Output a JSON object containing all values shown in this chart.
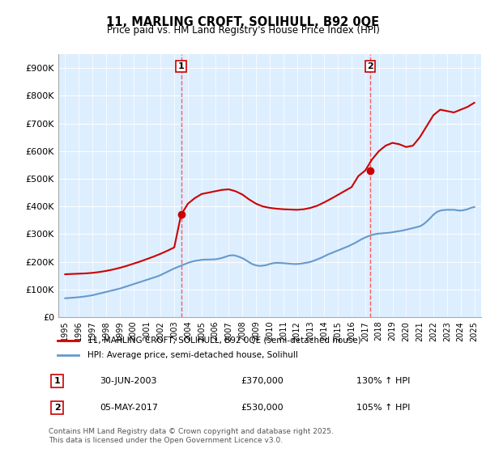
{
  "title": "11, MARLING CROFT, SOLIHULL, B92 0QE",
  "subtitle": "Price paid vs. HM Land Registry's House Price Index (HPI)",
  "legend_line1": "11, MARLING CROFT, SOLIHULL, B92 0QE (semi-detached house)",
  "legend_line2": "HPI: Average price, semi-detached house, Solihull",
  "footnote": "Contains HM Land Registry data © Crown copyright and database right 2025.\nThis data is licensed under the Open Government Licence v3.0.",
  "sale1_label": "1",
  "sale1_date": "30-JUN-2003",
  "sale1_price": "£370,000",
  "sale1_hpi": "130% ↑ HPI",
  "sale2_label": "2",
  "sale2_date": "05-MAY-2017",
  "sale2_price": "£530,000",
  "sale2_hpi": "105% ↑ HPI",
  "sale1_x": 2003.5,
  "sale2_x": 2017.37,
  "red_color": "#cc0000",
  "blue_color": "#6699cc",
  "dashed_red": "#ff4444",
  "background_chart": "#ddeeff",
  "ylim_min": 0,
  "ylim_max": 950000,
  "xlim_min": 1994.5,
  "xlim_max": 2025.5,
  "ytick_values": [
    0,
    100000,
    200000,
    300000,
    400000,
    500000,
    600000,
    700000,
    800000,
    900000
  ],
  "ytick_labels": [
    "£0",
    "£100K",
    "£200K",
    "£300K",
    "£400K",
    "£500K",
    "£600K",
    "£700K",
    "£800K",
    "£900K"
  ],
  "xtick_values": [
    1995,
    1996,
    1997,
    1998,
    1999,
    2000,
    2001,
    2002,
    2003,
    2004,
    2005,
    2006,
    2007,
    2008,
    2009,
    2010,
    2011,
    2012,
    2013,
    2014,
    2015,
    2016,
    2017,
    2018,
    2019,
    2020,
    2021,
    2022,
    2023,
    2024,
    2025
  ],
  "hpi_years": [
    1995,
    1995.25,
    1995.5,
    1995.75,
    1996,
    1996.25,
    1996.5,
    1996.75,
    1997,
    1997.25,
    1997.5,
    1997.75,
    1998,
    1998.25,
    1998.5,
    1998.75,
    1999,
    1999.25,
    1999.5,
    1999.75,
    2000,
    2000.25,
    2000.5,
    2000.75,
    2001,
    2001.25,
    2001.5,
    2001.75,
    2002,
    2002.25,
    2002.5,
    2002.75,
    2003,
    2003.25,
    2003.5,
    2003.75,
    2004,
    2004.25,
    2004.5,
    2004.75,
    2005,
    2005.25,
    2005.5,
    2005.75,
    2006,
    2006.25,
    2006.5,
    2006.75,
    2007,
    2007.25,
    2007.5,
    2007.75,
    2008,
    2008.25,
    2008.5,
    2008.75,
    2009,
    2009.25,
    2009.5,
    2009.75,
    2010,
    2010.25,
    2010.5,
    2010.75,
    2011,
    2011.25,
    2011.5,
    2011.75,
    2012,
    2012.25,
    2012.5,
    2012.75,
    2013,
    2013.25,
    2013.5,
    2013.75,
    2014,
    2014.25,
    2014.5,
    2014.75,
    2015,
    2015.25,
    2015.5,
    2015.75,
    2016,
    2016.25,
    2016.5,
    2016.75,
    2017,
    2017.25,
    2017.5,
    2017.75,
    2018,
    2018.25,
    2018.5,
    2018.75,
    2019,
    2019.25,
    2019.5,
    2019.75,
    2020,
    2020.25,
    2020.5,
    2020.75,
    2021,
    2021.25,
    2021.5,
    2021.75,
    2022,
    2022.25,
    2022.5,
    2022.75,
    2023,
    2023.25,
    2023.5,
    2023.75,
    2024,
    2024.25,
    2024.5,
    2024.75,
    2025
  ],
  "hpi_values": [
    68000,
    69000,
    70000,
    71000,
    72000,
    73500,
    75000,
    77000,
    79000,
    82000,
    85000,
    88000,
    91000,
    94000,
    97000,
    100000,
    103000,
    107000,
    111000,
    115000,
    119000,
    123000,
    127000,
    131000,
    135000,
    139000,
    143000,
    147000,
    152000,
    158000,
    164000,
    170000,
    176000,
    181000,
    186000,
    191000,
    196000,
    200000,
    203000,
    205000,
    207000,
    208000,
    208000,
    208500,
    209000,
    211000,
    214000,
    218000,
    222000,
    224000,
    222000,
    218000,
    213000,
    206000,
    198000,
    191000,
    187000,
    185000,
    186000,
    188000,
    192000,
    195000,
    196000,
    196000,
    195000,
    194000,
    193000,
    192000,
    192000,
    193000,
    195000,
    197000,
    200000,
    204000,
    209000,
    214000,
    220000,
    226000,
    231000,
    236000,
    241000,
    246000,
    251000,
    256000,
    262000,
    268000,
    275000,
    282000,
    288000,
    293000,
    297000,
    300000,
    302000,
    303000,
    304000,
    305000,
    307000,
    309000,
    311000,
    313000,
    316000,
    319000,
    322000,
    325000,
    328000,
    335000,
    345000,
    357000,
    370000,
    380000,
    385000,
    387000,
    388000,
    388000,
    388000,
    386000,
    385000,
    387000,
    390000,
    395000,
    398000
  ],
  "property_years": [
    1995,
    1995.5,
    1996,
    1996.5,
    1997,
    1997.5,
    1998,
    1998.5,
    1999,
    1999.5,
    2000,
    2000.5,
    2001,
    2001.5,
    2002,
    2002.5,
    2003,
    2003.5,
    2004,
    2004.5,
    2005,
    2005.5,
    2006,
    2006.5,
    2007,
    2007.5,
    2008,
    2008.5,
    2009,
    2009.5,
    2010,
    2010.5,
    2011,
    2011.5,
    2012,
    2012.5,
    2013,
    2013.5,
    2014,
    2014.5,
    2015,
    2015.5,
    2016,
    2016.5,
    2017,
    2017.5,
    2018,
    2018.5,
    2019,
    2019.5,
    2020,
    2020.5,
    2021,
    2021.5,
    2022,
    2022.5,
    2023,
    2023.5,
    2024,
    2024.5,
    2025
  ],
  "property_values": [
    155000,
    156000,
    157000,
    158000,
    160000,
    163000,
    167000,
    172000,
    178000,
    185000,
    193000,
    201000,
    210000,
    219000,
    229000,
    240000,
    252000,
    370000,
    410000,
    430000,
    445000,
    450000,
    455000,
    460000,
    462000,
    455000,
    443000,
    425000,
    410000,
    400000,
    395000,
    392000,
    390000,
    389000,
    388000,
    390000,
    395000,
    403000,
    415000,
    428000,
    442000,
    456000,
    470000,
    510000,
    530000,
    570000,
    600000,
    620000,
    630000,
    625000,
    615000,
    620000,
    650000,
    690000,
    730000,
    750000,
    745000,
    740000,
    750000,
    760000,
    775000
  ]
}
